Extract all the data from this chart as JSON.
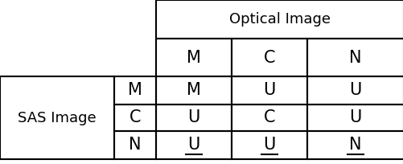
{
  "title": "Optical Image",
  "row_label": "SAS Image",
  "col_headers": [
    "M",
    "C",
    "N"
  ],
  "row_headers": [
    "M",
    "C",
    "N"
  ],
  "cell_data": [
    [
      "M",
      "U",
      "U"
    ],
    [
      "U",
      "C",
      "U"
    ],
    [
      "U",
      "U",
      "N"
    ]
  ],
  "underlined_cells": [
    [
      2,
      0
    ],
    [
      2,
      1
    ],
    [
      2,
      2
    ]
  ],
  "bg_color": "#ffffff",
  "text_color": "#000000",
  "line_color": "#000000",
  "col_boundaries": [
    0,
    142,
    194,
    288,
    382,
    502
  ],
  "row_boundaries": [
    0,
    48,
    95,
    130,
    163,
    198
  ],
  "font_size_header": 13,
  "font_size_cell": 15,
  "font_size_sas": 13
}
